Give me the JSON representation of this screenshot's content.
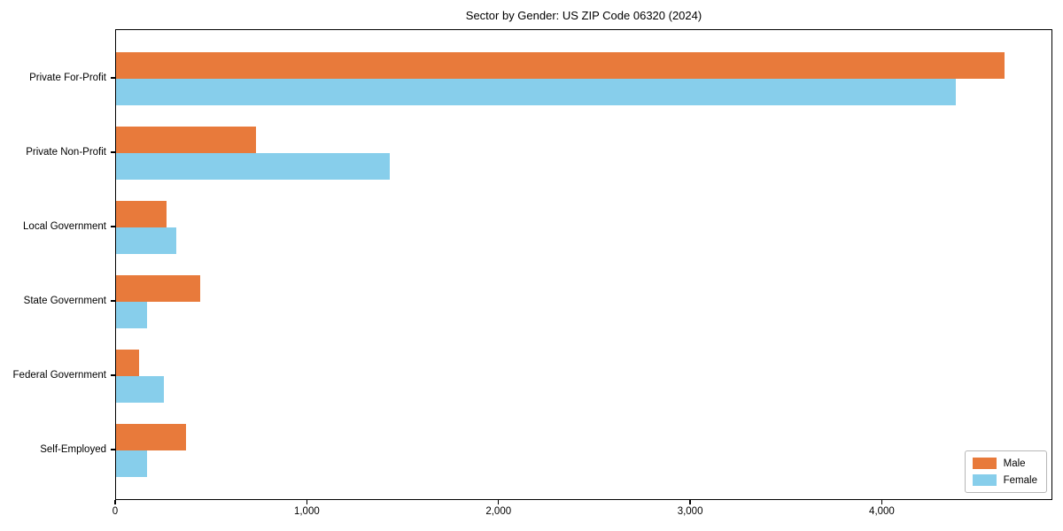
{
  "chart_data": {
    "type": "bar",
    "orientation": "horizontal",
    "title": "Sector by Gender: US ZIP Code 06320 (2024)",
    "categories": [
      "Private For-Profit",
      "Private Non-Profit",
      "Local Government",
      "State Government",
      "Federal Government",
      "Self-Employed"
    ],
    "series": [
      {
        "name": "Male",
        "color": "#E87A3B",
        "values": [
          4645,
          730,
          265,
          440,
          120,
          365
        ]
      },
      {
        "name": "Female",
        "color": "#87CEEB",
        "values": [
          4390,
          1430,
          315,
          160,
          250,
          160
        ]
      }
    ],
    "xlabel": "",
    "ylabel": "",
    "xlim": [
      0,
      4890
    ],
    "xticks": [
      0,
      1000,
      2000,
      3000,
      4000
    ],
    "xtick_labels": [
      "0",
      "1,000",
      "2,000",
      "3,000",
      "4,000"
    ],
    "grid": false,
    "legend": {
      "position": "lower-right",
      "entries": [
        "Male",
        "Female"
      ]
    }
  }
}
